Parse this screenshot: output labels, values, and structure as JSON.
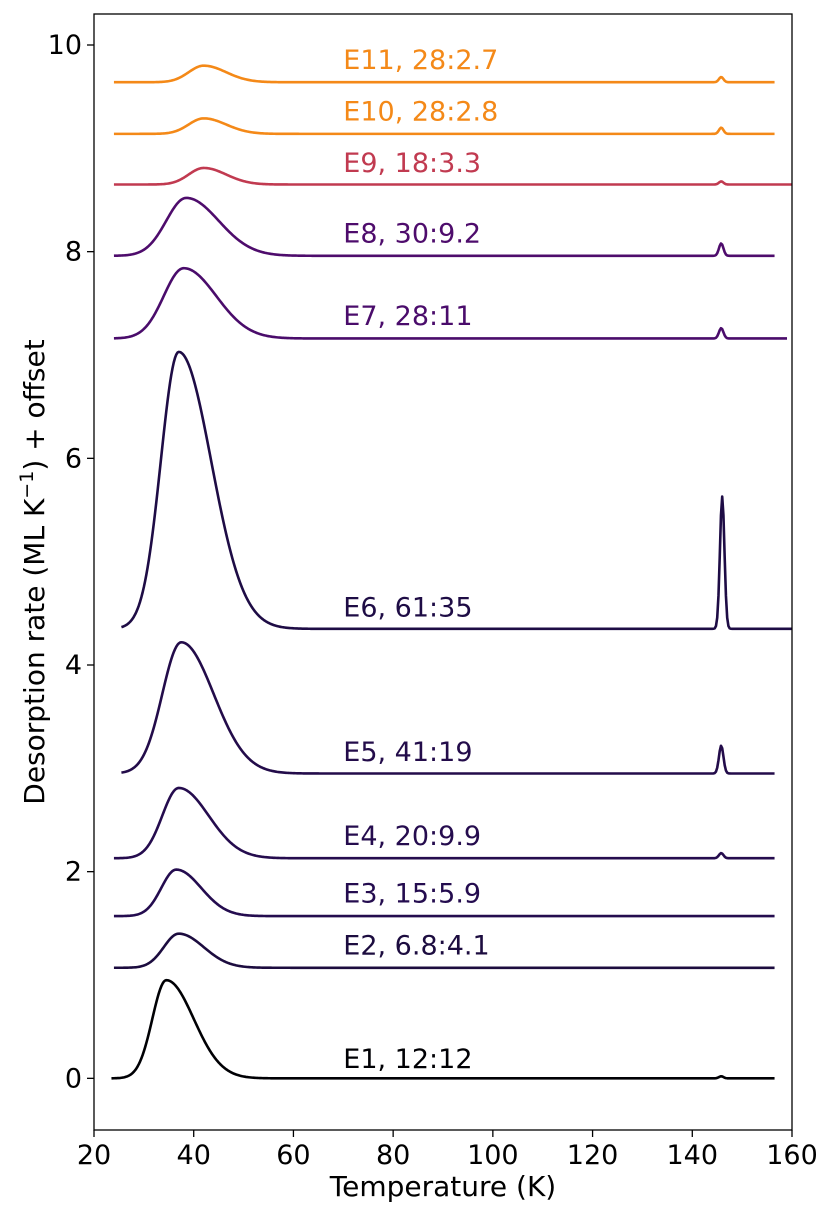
{
  "chart_data": {
    "type": "line",
    "xlabel": "Temperature (K)",
    "ylabel_parts": [
      "Desorption rate (ML K",
      "−1",
      ") + offset"
    ],
    "xlim": [
      20,
      160
    ],
    "ylim": [
      -0.5,
      10.3
    ],
    "xticks": [
      20,
      40,
      60,
      80,
      100,
      120,
      140,
      160
    ],
    "yticks": [
      0,
      2,
      4,
      6,
      8,
      10
    ],
    "grid": false,
    "label_x": 70,
    "series": [
      {
        "name": "E1, 12:12",
        "color": "#000004",
        "x_start": 23.5,
        "x_end": 156.5,
        "baseline": 0.0,
        "peak1_x": 34.5,
        "peak1_height": 0.95,
        "peak1_sigma_left": 2.8,
        "peak1_sigma_right": 5.5,
        "peak2_x": 145.8,
        "peak2_height": 0.02,
        "label_y": 0.1
      },
      {
        "name": "E2, 6.8:4.1",
        "color": "#1c0c3f",
        "x_start": 24.0,
        "x_end": 156.5,
        "baseline": 1.07,
        "peak1_x": 37.0,
        "peak1_height": 0.33,
        "peak1_sigma_left": 3.0,
        "peak1_sigma_right": 5.0,
        "peak2_x": 145.8,
        "peak2_height": 0.0,
        "label_y": 1.2
      },
      {
        "name": "E3, 15:5.9",
        "color": "#240c4f",
        "x_start": 24.0,
        "x_end": 156.5,
        "baseline": 1.57,
        "peak1_x": 36.5,
        "peak1_height": 0.45,
        "peak1_sigma_left": 3.0,
        "peak1_sigma_right": 5.0,
        "peak2_x": 145.8,
        "peak2_height": 0.0,
        "label_y": 1.7
      },
      {
        "name": "E4, 20:9.9",
        "color": "#250c4e",
        "x_start": 24.0,
        "x_end": 156.5,
        "baseline": 2.13,
        "peak1_x": 37.0,
        "peak1_height": 0.68,
        "peak1_sigma_left": 3.3,
        "peak1_sigma_right": 6.0,
        "peak2_x": 145.8,
        "peak2_height": 0.05,
        "label_y": 2.26
      },
      {
        "name": "E5, 41:19",
        "color": "#230c4a",
        "x_start": 25.5,
        "x_end": 156.5,
        "baseline": 2.95,
        "peak1_x": 37.5,
        "peak1_height": 1.27,
        "peak1_sigma_left": 3.8,
        "peak1_sigma_right": 6.5,
        "peak2_x": 145.8,
        "peak2_height": 0.27,
        "label_y": 3.07
      },
      {
        "name": "E6, 61:35",
        "color": "#1e0c45",
        "x_start": 25.5,
        "x_end": 160.0,
        "baseline": 4.35,
        "peak1_x": 37.0,
        "peak1_height": 2.68,
        "peak1_sigma_left": 3.6,
        "peak1_sigma_right": 6.5,
        "peak2_x": 146.0,
        "peak2_height": 1.28,
        "label_y": 4.47
      },
      {
        "name": "E7, 28:11",
        "color": "#4a0c6b",
        "x_start": 24.0,
        "x_end": 159.0,
        "baseline": 7.16,
        "peak1_x": 38.0,
        "peak1_height": 0.68,
        "peak1_sigma_left": 4.0,
        "peak1_sigma_right": 6.5,
        "peak2_x": 145.8,
        "peak2_height": 0.1,
        "label_y": 7.29
      },
      {
        "name": "E8, 30:9.2",
        "color": "#4e0c6c",
        "x_start": 24.0,
        "x_end": 156.5,
        "baseline": 7.96,
        "peak1_x": 38.5,
        "peak1_height": 0.56,
        "peak1_sigma_left": 4.0,
        "peak1_sigma_right": 6.5,
        "peak2_x": 145.8,
        "peak2_height": 0.12,
        "label_y": 8.09
      },
      {
        "name": "E9, 18:3.3",
        "color": "#c13a50",
        "x_start": 24.0,
        "x_end": 160.0,
        "baseline": 8.65,
        "peak1_x": 42.0,
        "peak1_height": 0.16,
        "peak1_sigma_left": 3.0,
        "peak1_sigma_right": 4.5,
        "peak2_x": 145.8,
        "peak2_height": 0.03,
        "label_y": 8.77
      },
      {
        "name": "E10, 28:2.8",
        "color": "#f48918",
        "x_start": 24.0,
        "x_end": 156.5,
        "baseline": 9.14,
        "peak1_x": 42.0,
        "peak1_height": 0.15,
        "peak1_sigma_left": 3.0,
        "peak1_sigma_right": 4.5,
        "peak2_x": 145.8,
        "peak2_height": 0.06,
        "label_y": 9.27
      },
      {
        "name": "E11, 28:2.7",
        "color": "#f48918",
        "x_start": 24.0,
        "x_end": 156.5,
        "baseline": 9.64,
        "peak1_x": 42.0,
        "peak1_height": 0.16,
        "peak1_sigma_left": 3.0,
        "peak1_sigma_right": 4.5,
        "peak2_x": 145.8,
        "peak2_height": 0.05,
        "label_y": 9.77
      }
    ]
  }
}
